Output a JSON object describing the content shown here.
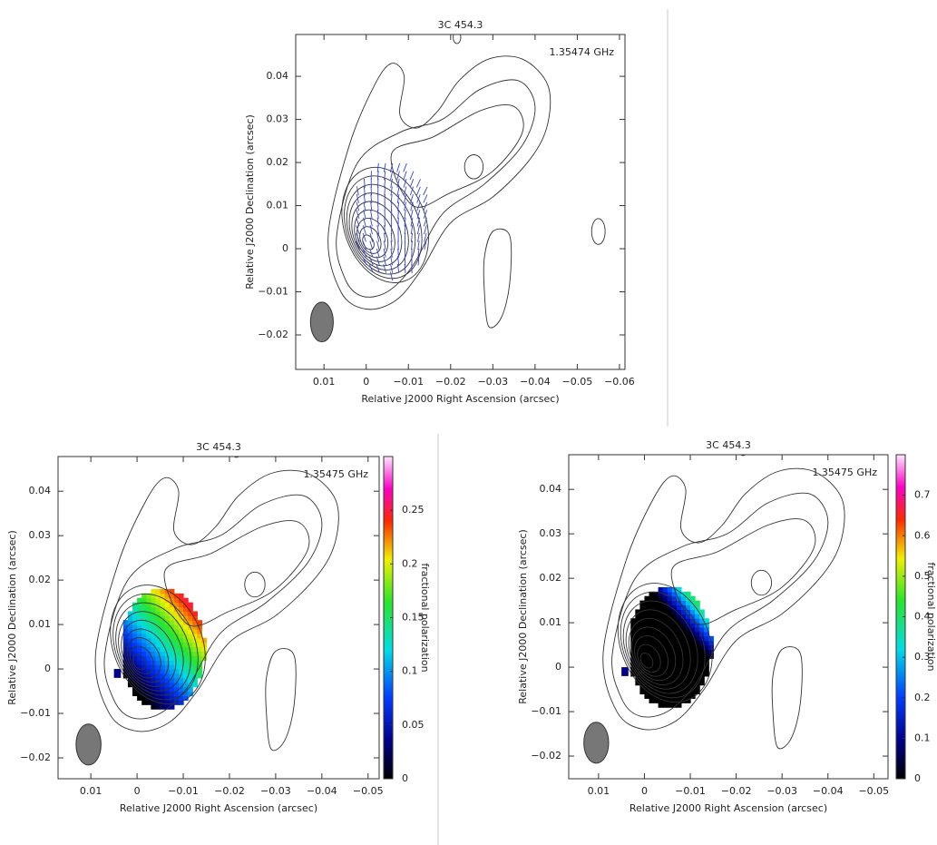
{
  "chart_data": [
    {
      "type": "contour",
      "title": "3C 454.3",
      "annotation": "1.35474 GHz",
      "xlabel": "Relative J2000 Right Ascension (arcsec)",
      "ylabel": "Relative J2000 Declination (arcsec)",
      "xlim": [
        0.0167,
        -0.0613
      ],
      "ylim": [
        -0.028,
        0.0497
      ],
      "xticks": [
        0.01,
        0,
        {
          "value": -0.01,
          "label": "−0.01"
        },
        {
          "value": -0.02,
          "label": "−0.02"
        },
        {
          "value": -0.03,
          "label": "−0.03"
        },
        {
          "value": -0.04,
          "label": "−0.04"
        },
        {
          "value": -0.05,
          "label": "−0.05"
        },
        {
          "value": -0.06,
          "label": "−0.06"
        }
      ],
      "yticks": [
        {
          "value": -0.02,
          "label": "−0.02"
        },
        {
          "value": -0.01,
          "label": "−0.01"
        },
        0,
        0.01,
        0.02,
        0.03,
        0.04
      ]
    },
    {
      "type": "contour",
      "title": "3C 454.3",
      "annotation": "1.35475 GHz",
      "xlabel": "Relative J2000 Right Ascension (arcsec)",
      "ylabel": "Relative J2000 Declination (arcsec)",
      "xlim": [
        0.0171,
        -0.0524
      ],
      "ylim": [
        -0.0247,
        0.0478
      ],
      "xticks": [
        0.01,
        0,
        {
          "value": -0.01,
          "label": "−0.01"
        },
        {
          "value": -0.02,
          "label": "−0.02"
        },
        {
          "value": -0.03,
          "label": "−0.03"
        },
        {
          "value": -0.04,
          "label": "−0.04"
        },
        {
          "value": -0.05,
          "label": "−0.05"
        }
      ],
      "yticks": [
        {
          "value": -0.02,
          "label": "−0.02"
        },
        {
          "value": -0.01,
          "label": "−0.01"
        },
        0,
        0.01,
        0.02,
        0.03,
        0.04
      ],
      "colorbar": {
        "label": "fractional polarization",
        "lim": [
          0,
          0.3
        ],
        "ticks": [
          0,
          0.05,
          0.1,
          0.15,
          0.2,
          0.25
        ]
      }
    },
    {
      "type": "contour",
      "title": "3C 454.3",
      "annotation": "1.35475 GHz",
      "xlabel": "Relative J2000 Right Ascension (arcsec)",
      "ylabel": "Relative J2000 Declination (arcsec)",
      "xlim": [
        0.0165,
        -0.0531
      ],
      "ylim": [
        -0.0251,
        0.0478
      ],
      "xticks": [
        0.01,
        0,
        {
          "value": -0.01,
          "label": "−0.01"
        },
        {
          "value": -0.02,
          "label": "−0.02"
        },
        {
          "value": -0.03,
          "label": "−0.03"
        },
        {
          "value": -0.04,
          "label": "−0.04"
        },
        {
          "value": -0.05,
          "label": "−0.05"
        }
      ],
      "yticks": [
        {
          "value": -0.02,
          "label": "−0.02"
        },
        {
          "value": -0.01,
          "label": "−0.01"
        },
        0,
        0.01,
        0.02,
        0.03,
        0.04
      ],
      "colorbar": {
        "label": "fractional polarization",
        "lim": [
          0,
          0.8
        ],
        "ticks": [
          0,
          0.1,
          0.2,
          0.3,
          0.4,
          0.5,
          0.6,
          0.7
        ]
      }
    }
  ]
}
